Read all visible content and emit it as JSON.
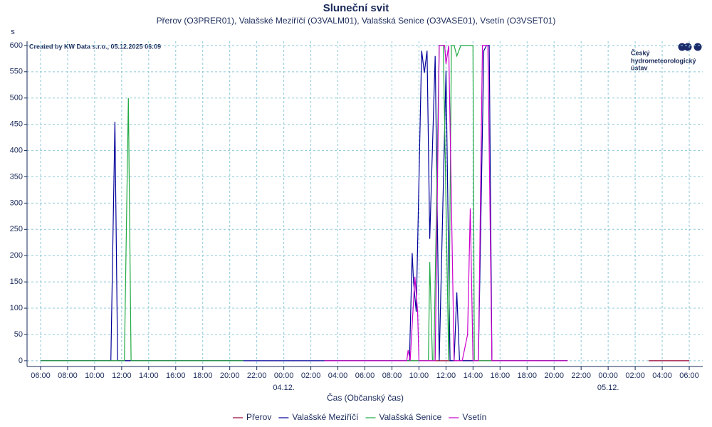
{
  "chart_data": {
    "type": "line",
    "title": "Sluneční svit",
    "subtitle": "Přerov (O3PRER01), Valašské Meziříčí (O3VALM01), Valašská Senice (O3VASE01), Vsetín (O3VSET01)",
    "y_unit": "s",
    "x_label": "Čas (Občanský čas)",
    "annotation": "Created by KW Data s.r.o., 05.12.2025 06:09",
    "logo": [
      "Český",
      "hydrometeorologický",
      "ústav"
    ],
    "xlim": [
      -1,
      49
    ],
    "ylim": [
      -11,
      608
    ],
    "xticks": [
      {
        "value": 0,
        "label": "06:00"
      },
      {
        "value": 2,
        "label": "08:00"
      },
      {
        "value": 4,
        "label": "10:00"
      },
      {
        "value": 6,
        "label": "12:00"
      },
      {
        "value": 8,
        "label": "14:00"
      },
      {
        "value": 10,
        "label": "16:00"
      },
      {
        "value": 12,
        "label": "18:00"
      },
      {
        "value": 14,
        "label": "20:00"
      },
      {
        "value": 16,
        "label": "22:00"
      },
      {
        "value": 18,
        "label": "00:00"
      },
      {
        "value": 20,
        "label": "02:00"
      },
      {
        "value": 22,
        "label": "04:00"
      },
      {
        "value": 24,
        "label": "06:00"
      },
      {
        "value": 26,
        "label": "08:00"
      },
      {
        "value": 28,
        "label": "10:00"
      },
      {
        "value": 30,
        "label": "12:00"
      },
      {
        "value": 32,
        "label": "14:00"
      },
      {
        "value": 34,
        "label": "16:00"
      },
      {
        "value": 36,
        "label": "18:00"
      },
      {
        "value": 38,
        "label": "20:00"
      },
      {
        "value": 40,
        "label": "22:00"
      },
      {
        "value": 42,
        "label": "00:00"
      },
      {
        "value": 44,
        "label": "02:00"
      },
      {
        "value": 46,
        "label": "04:00"
      },
      {
        "value": 48,
        "label": "06:00"
      }
    ],
    "xtick_dates": [
      {
        "value": 18,
        "label": "04.12."
      },
      {
        "value": 42,
        "label": "05.12."
      }
    ],
    "yticks": [
      0,
      50,
      100,
      150,
      200,
      250,
      300,
      350,
      400,
      450,
      500,
      550,
      600
    ],
    "grid": true,
    "series": [
      {
        "name": "Přerov",
        "color": "#990033",
        "x": [
          0,
          15,
          null,
          21,
          39,
          null,
          45,
          48
        ],
        "values": [
          0,
          0,
          null,
          0,
          0,
          null,
          0,
          0
        ]
      },
      {
        "name": "Valašské Meziříčí",
        "color": "#000099",
        "x": [
          0,
          5.2,
          5.5,
          5.7,
          27.3,
          27.5,
          27.6,
          27.8,
          28.2,
          28.4,
          28.6,
          28.8,
          29.2,
          29.5,
          30.0,
          30.3,
          30.6,
          30.8,
          31.0,
          32.4,
          32.8,
          33.0,
          33.2,
          33.4,
          39
        ],
        "values": [
          0,
          0,
          455,
          0,
          0,
          205,
          150,
          93,
          590,
          548,
          590,
          232,
          580,
          0,
          552,
          0,
          0,
          130,
          0,
          0,
          590,
          600,
          600,
          0,
          0
        ]
      },
      {
        "name": "Valašská Senice",
        "color": "#22aa44",
        "x": [
          0,
          6.2,
          6.5,
          6.7,
          15,
          null,
          21,
          28.7,
          28.8,
          29.0,
          29.1,
          29.5,
          29.8,
          30.2,
          30.4,
          30.6,
          30.8,
          31.1,
          32.0,
          32.1,
          39
        ],
        "values": [
          0,
          0,
          500,
          0,
          0,
          null,
          0,
          0,
          188,
          0,
          0,
          600,
          600,
          0,
          600,
          600,
          580,
          600,
          600,
          0,
          0
        ]
      },
      {
        "name": "Vsetín",
        "color": "#cc00cc",
        "x": [
          21,
          27.1,
          27.2,
          27.35,
          27.7,
          27.9,
          28.0,
          29.2,
          29.5,
          29.9,
          30.0,
          30.2,
          30.6,
          31.2,
          31.6,
          31.8,
          32.0,
          32.4,
          32.7,
          33.1,
          33.4,
          39
        ],
        "values": [
          0,
          0,
          20,
          0,
          160,
          95,
          0,
          0,
          600,
          600,
          565,
          600,
          0,
          0,
          50,
          290,
          0,
          0,
          600,
          600,
          0,
          0
        ]
      }
    ]
  }
}
